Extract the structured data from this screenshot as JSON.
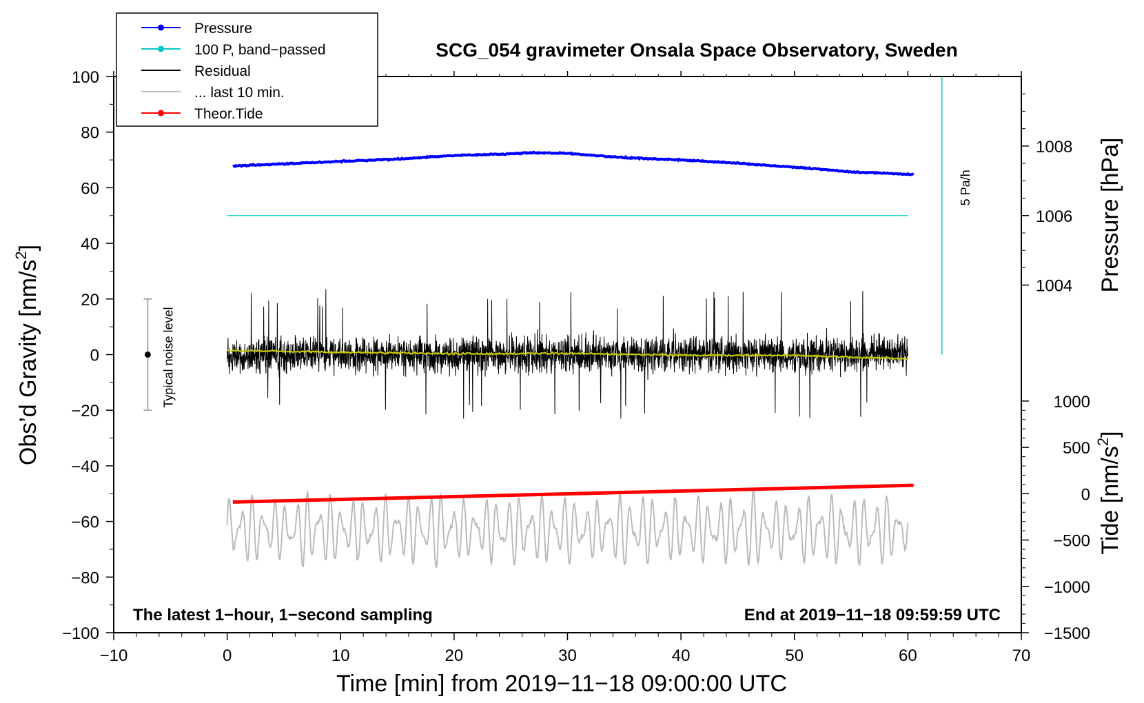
{
  "chart_data": {
    "type": "line",
    "title": "SCG_054 gravimeter Onsala Space Observatory, Sweden",
    "xlabel": "Time [min] from 2019−11−18 09:00:00 UTC",
    "ylabel": "Obs’d Gravity [nm/s²]",
    "ylabel_main": "Obs’d Gravity [nm/s",
    "ylabel_sup": "2",
    "ylabel_end": "]",
    "y2label": "Pressure [hPa]",
    "y3label": "Tide [nm/s²]",
    "y3label_main": "Tide [nm/s",
    "y3label_sup": "2",
    "y3label_end": "]",
    "xlim": [
      -10,
      70
    ],
    "ylim": [
      -100,
      100
    ],
    "x_ticks": [
      -10,
      0,
      10,
      20,
      30,
      40,
      50,
      60,
      70
    ],
    "x_tick_labels": [
      "−10",
      "0",
      "10",
      "20",
      "30",
      "40",
      "50",
      "60",
      "70"
    ],
    "y_ticks": [
      -100,
      -80,
      -60,
      -40,
      -20,
      0,
      20,
      40,
      60,
      80,
      100
    ],
    "y_tick_labels": [
      "−100",
      "−80",
      "−60",
      "−40",
      "−20",
      "0",
      "20",
      "40",
      "60",
      "80",
      "100"
    ],
    "pressure_axis": {
      "ticks": [
        1004,
        1006,
        1008
      ],
      "tick_labels": [
        "1004",
        "1006",
        "1008"
      ],
      "gravity_at_1004": 25,
      "gravity_at_1008": 75
    },
    "tide_axis": {
      "ticks": [
        -1500,
        -1000,
        -500,
        0,
        500,
        1000
      ],
      "tick_labels": [
        "−1500",
        "−1000",
        "−500",
        "0",
        "500",
        "1000"
      ],
      "gravity_at_minus1500": -100,
      "gravity_at_1000": -16.7
    },
    "legend": [
      {
        "label": "Pressure",
        "color": "#0000ff",
        "marker": true
      },
      {
        "label": "100 P, band−passed",
        "color": "#00c8c8",
        "marker": true
      },
      {
        "label": "Residual",
        "color": "#000000",
        "marker": false
      },
      {
        "label": "... last 10 min.",
        "color": "#bbbbbb",
        "marker": false
      },
      {
        "label": "Theor.Tide",
        "color": "#ff0000",
        "marker": true
      }
    ],
    "series": [
      {
        "name": "Pressure",
        "color": "#0000ff",
        "x_range": [
          0.5,
          60.5
        ],
        "points": [
          [
            0.5,
            67.8
          ],
          [
            5,
            68.6
          ],
          [
            10,
            69.5
          ],
          [
            15,
            70.3
          ],
          [
            20,
            71.6
          ],
          [
            25,
            72.2
          ],
          [
            27,
            72.6
          ],
          [
            30,
            72.4
          ],
          [
            35,
            70.8
          ],
          [
            40,
            70.0
          ],
          [
            45,
            68.8
          ],
          [
            50,
            67.4
          ],
          [
            55,
            65.7
          ],
          [
            60.5,
            64.8
          ]
        ]
      },
      {
        "name": "100 P, band−passed",
        "color": "#00c8c8",
        "x_range": [
          0,
          60
        ],
        "value": 50
      },
      {
        "name": "Residual",
        "color": "#000000",
        "x_range": [
          0,
          60
        ],
        "center": 0,
        "typical_amplitude": 12,
        "peak_max": 27,
        "peak_min": -23
      },
      {
        "name": "Residual smoothed",
        "color": "#c8c800",
        "x_range": [
          0,
          60
        ],
        "points": [
          [
            0,
            1.5
          ],
          [
            10,
            0.8
          ],
          [
            20,
            0.3
          ],
          [
            30,
            0.4
          ],
          [
            40,
            -0.2
          ],
          [
            50,
            -0.3
          ],
          [
            60,
            -1.5
          ]
        ]
      },
      {
        "name": "... last 10 min.",
        "color": "#bbbbbb",
        "x_range": [
          0,
          60
        ],
        "center": -63,
        "amplitude": 10,
        "max": -43,
        "min": -78
      },
      {
        "name": "Theor.Tide",
        "color": "#ff0000",
        "x_range": [
          0.5,
          60.5
        ],
        "points": [
          [
            0.5,
            -53
          ],
          [
            60.5,
            -47
          ]
        ]
      }
    ],
    "scale_bar": {
      "label": "5 Pa/h",
      "x": 63,
      "y_from": 0,
      "y_to": 100,
      "color": "#00c8c8"
    },
    "noise_bar": {
      "label": "Typical noise level",
      "x": -7,
      "y_from": -20,
      "y_to": 20,
      "center": 0
    },
    "annotations": {
      "bottom_left": "The latest 1−hour, 1−second sampling",
      "bottom_right": "End at 2019−11−18 09:59:59 UTC"
    }
  }
}
